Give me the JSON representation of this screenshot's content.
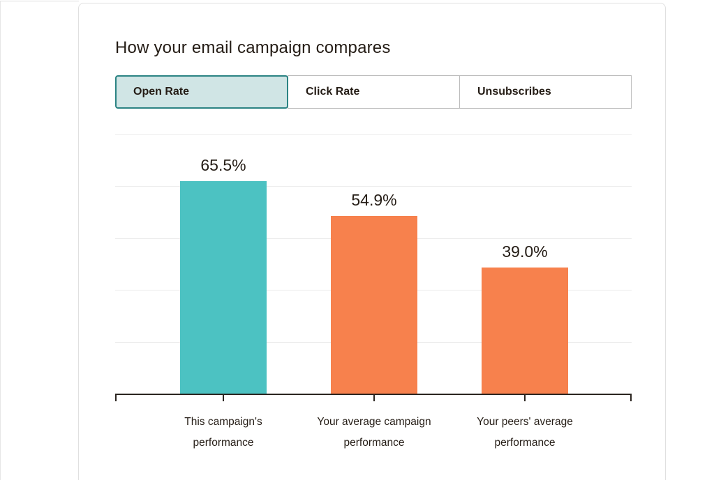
{
  "card": {
    "title": "How your email campaign compares"
  },
  "tabs": {
    "active": "Open Rate",
    "items": [
      {
        "label": "Open Rate",
        "active": true
      },
      {
        "label": "Click Rate",
        "active": false
      },
      {
        "label": "Unsubscribes",
        "active": false
      }
    ]
  },
  "colors": {
    "teal_bar": "#4cc2c2",
    "orange_bar": "#f7814d",
    "active_tab_bg": "#d0e5e5",
    "active_tab_border": "#2b8383",
    "inactive_tab_border": "#bcbcbc",
    "axis": "#2b2520",
    "gridline": "#ececec",
    "text": "#241c15",
    "card_border": "#e0e0e0"
  },
  "chart_data": {
    "type": "bar",
    "title": "How your email campaign compares",
    "metric": "Open Rate",
    "categories": [
      "This campaign's performance",
      "Your average campaign performance",
      "Your peers' average performance"
    ],
    "category_lines": [
      [
        "This campaign's",
        "performance"
      ],
      [
        "Your average campaign",
        "performance"
      ],
      [
        "Your peers' average",
        "performance"
      ]
    ],
    "values": [
      65.5,
      54.9,
      39.0
    ],
    "value_labels": [
      "65.5%",
      "54.9%",
      "39.0%"
    ],
    "bar_colors": [
      "#4cc2c2",
      "#f7814d",
      "#f7814d"
    ],
    "xlabel": "",
    "ylabel": "",
    "ylim": [
      0,
      80
    ],
    "grid": true,
    "gridline_count": 5,
    "y_tick_labels_shown": false,
    "legend": "none"
  }
}
